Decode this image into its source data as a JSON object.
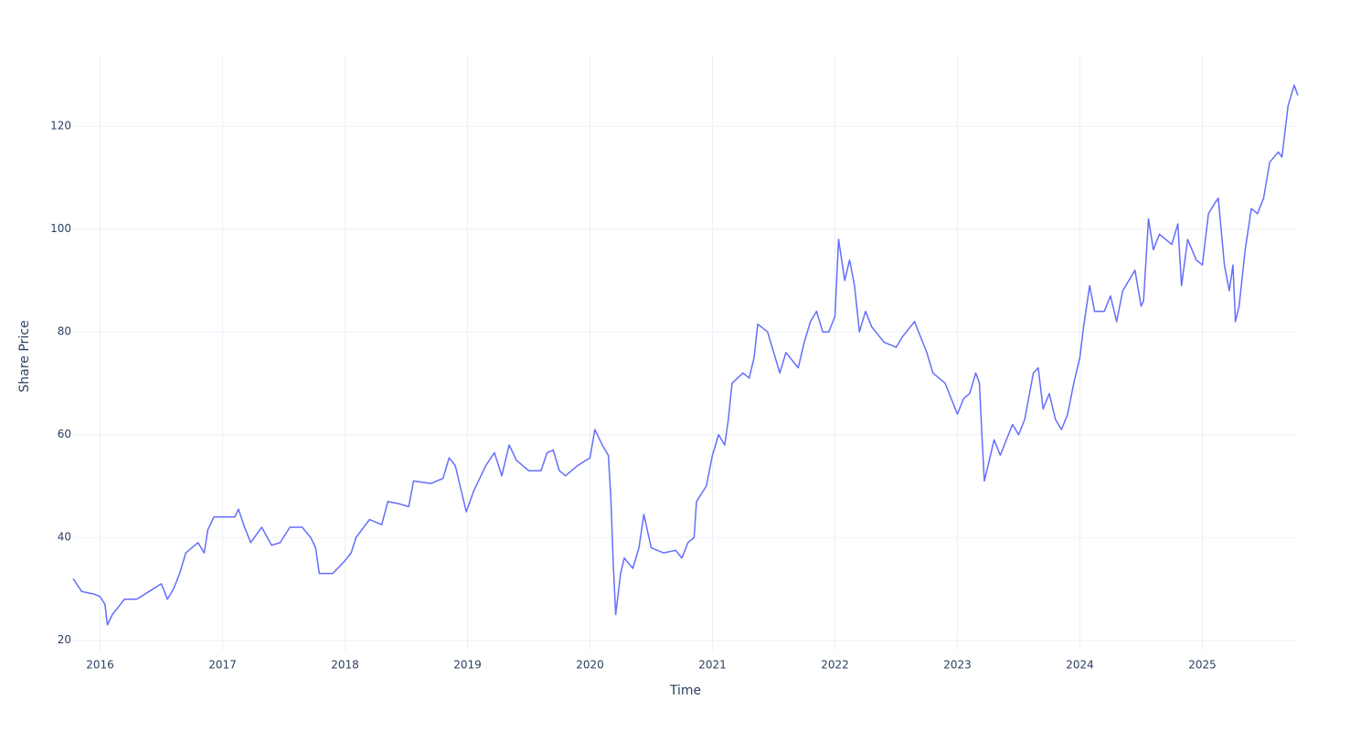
{
  "chart_data": {
    "type": "line",
    "x_label": "Time",
    "y_label": "Share Price",
    "color": "#636efa",
    "grid": true,
    "xlim": [
      2015.78,
      2025.78
    ],
    "xticks": [
      2016,
      2017,
      2018,
      2019,
      2020,
      2021,
      2022,
      2023,
      2024,
      2025
    ],
    "ylim": [
      18.0,
      133.9
    ],
    "yticks": [
      20,
      40,
      60,
      80,
      100,
      120
    ],
    "x": [
      2015.78,
      2015.85,
      2015.95,
      2016.0,
      2016.04,
      2016.06,
      2016.1,
      2016.15,
      2016.2,
      2016.3,
      2016.4,
      2016.5,
      2016.55,
      2016.6,
      2016.65,
      2016.7,
      2016.8,
      2016.85,
      2016.88,
      2016.93,
      2017.0,
      2017.1,
      2017.13,
      2017.18,
      2017.23,
      2017.32,
      2017.4,
      2017.47,
      2017.55,
      2017.65,
      2017.72,
      2017.76,
      2017.79,
      2017.9,
      2018.0,
      2018.05,
      2018.09,
      2018.2,
      2018.3,
      2018.35,
      2018.45,
      2018.52,
      2018.56,
      2018.7,
      2018.8,
      2018.85,
      2018.9,
      2018.99,
      2019.05,
      2019.15,
      2019.22,
      2019.28,
      2019.34,
      2019.4,
      2019.5,
      2019.6,
      2019.65,
      2019.7,
      2019.75,
      2019.8,
      2019.9,
      2020.0,
      2020.04,
      2020.1,
      2020.15,
      2020.17,
      2020.19,
      2020.21,
      2020.25,
      2020.28,
      2020.35,
      2020.4,
      2020.44,
      2020.5,
      2020.6,
      2020.7,
      2020.75,
      2020.8,
      2020.85,
      2020.87,
      2020.95,
      2021.0,
      2021.05,
      2021.1,
      2021.13,
      2021.16,
      2021.25,
      2021.3,
      2021.34,
      2021.37,
      2021.45,
      2021.5,
      2021.55,
      2021.6,
      2021.7,
      2021.75,
      2021.8,
      2021.85,
      2021.9,
      2021.95,
      2022.0,
      2022.03,
      2022.08,
      2022.12,
      2022.16,
      2022.2,
      2022.25,
      2022.3,
      2022.4,
      2022.5,
      2022.55,
      2022.65,
      2022.75,
      2022.8,
      2022.9,
      2023.0,
      2023.05,
      2023.1,
      2023.15,
      2023.18,
      2023.2,
      2023.22,
      2023.27,
      2023.3,
      2023.35,
      2023.45,
      2023.5,
      2023.55,
      2023.62,
      2023.66,
      2023.7,
      2023.75,
      2023.8,
      2023.85,
      2023.9,
      2023.95,
      2024.0,
      2024.03,
      2024.08,
      2024.12,
      2024.2,
      2024.25,
      2024.3,
      2024.35,
      2024.45,
      2024.5,
      2024.52,
      2024.56,
      2024.6,
      2024.65,
      2024.7,
      2024.75,
      2024.8,
      2024.83,
      2024.88,
      2024.95,
      2025.0,
      2025.05,
      2025.1,
      2025.13,
      2025.18,
      2025.22,
      2025.25,
      2025.27,
      2025.3,
      2025.35,
      2025.4,
      2025.45,
      2025.5,
      2025.55,
      2025.62,
      2025.65,
      2025.7,
      2025.75,
      2025.78
    ],
    "values": [
      32,
      29.5,
      29,
      28.5,
      27,
      23,
      25,
      26.5,
      28,
      28,
      29.5,
      31,
      28,
      30,
      33,
      37,
      39,
      37,
      41.5,
      44,
      44,
      44,
      45.5,
      42,
      39,
      42,
      38.5,
      39,
      42,
      42,
      40,
      38,
      33,
      33,
      35.5,
      37,
      40,
      43.5,
      42.5,
      47,
      46.5,
      46,
      51,
      50.5,
      51.5,
      55.5,
      54,
      45,
      49,
      54,
      56.5,
      52,
      58,
      55,
      53,
      53,
      56.5,
      57,
      53,
      52,
      54,
      55.5,
      61,
      58,
      56,
      48,
      35,
      25,
      33,
      36,
      34,
      38,
      44.5,
      38,
      37,
      37.5,
      36,
      39,
      40,
      47,
      50,
      56,
      60,
      58,
      63,
      70,
      72,
      71,
      75,
      81.5,
      80,
      76,
      72,
      76,
      73,
      78,
      82,
      84,
      80,
      80,
      83,
      98,
      90,
      94,
      89,
      80,
      84,
      81,
      78,
      77,
      79,
      82,
      76,
      72,
      70,
      64,
      67,
      68,
      72,
      70,
      60,
      51,
      56,
      59,
      56,
      62,
      60,
      63,
      72,
      73,
      65,
      68,
      63,
      61,
      64,
      70,
      75,
      81,
      89,
      84,
      84,
      87,
      82,
      88,
      92,
      85,
      86,
      102,
      96,
      99,
      98,
      97,
      101,
      89,
      98,
      94,
      93,
      103,
      105,
      106,
      93,
      88,
      93,
      82,
      85,
      96,
      104,
      103,
      106,
      113,
      115,
      114,
      124,
      128,
      126
    ]
  }
}
